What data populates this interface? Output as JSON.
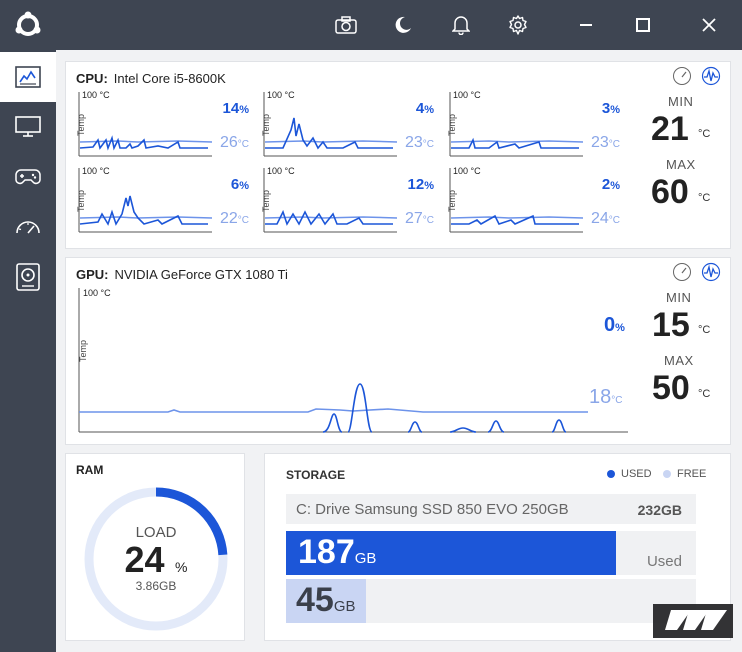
{
  "cpu": {
    "label": "CPU:",
    "name": "Intel Core i5-8600K",
    "min_label": "MIN",
    "min_value": "21",
    "max_label": "MAX",
    "max_value": "60",
    "unit": "°C",
    "axis_top": "100 °C",
    "axis_side": "Temp",
    "cores": [
      {
        "load": "14",
        "temp": "26"
      },
      {
        "load": "4",
        "temp": "23"
      },
      {
        "load": "3",
        "temp": "23"
      },
      {
        "load": "6",
        "temp": "22"
      },
      {
        "load": "12",
        "temp": "27"
      },
      {
        "load": "2",
        "temp": "24"
      }
    ]
  },
  "gpu": {
    "label": "GPU:",
    "name": "NVIDIA GeForce GTX 1080 Ti",
    "min_label": "MIN",
    "min_value": "15",
    "max_label": "MAX",
    "max_value": "50",
    "unit": "°C",
    "axis_top": "100 °C",
    "axis_side": "Temp",
    "load": "0",
    "temp": "18"
  },
  "ram": {
    "title": "RAM",
    "load_label": "LOAD",
    "load_value": "24",
    "load_unit": "%",
    "amount": "3.86GB",
    "fraction": 0.24
  },
  "storage": {
    "title": "STORAGE",
    "legend_used": "USED",
    "legend_free": "FREE",
    "drive_name": "C: Drive Samsung SSD 850 EVO 250GB",
    "drive_total": "232GB",
    "used_value": "187",
    "used_unit": "GB",
    "used_label": "Used",
    "free_value": "45",
    "free_unit": "GB",
    "used_fraction": 0.806,
    "free_fraction": 0.194
  },
  "units": {
    "percent": "%",
    "celsius": "°C"
  },
  "colors": {
    "accent": "#1c56d8",
    "accent_light": "#8aa6e8",
    "sidebar": "#3e4552",
    "ring_bg": "#e3eaf9",
    "free_fill": "#c9d5f3"
  }
}
